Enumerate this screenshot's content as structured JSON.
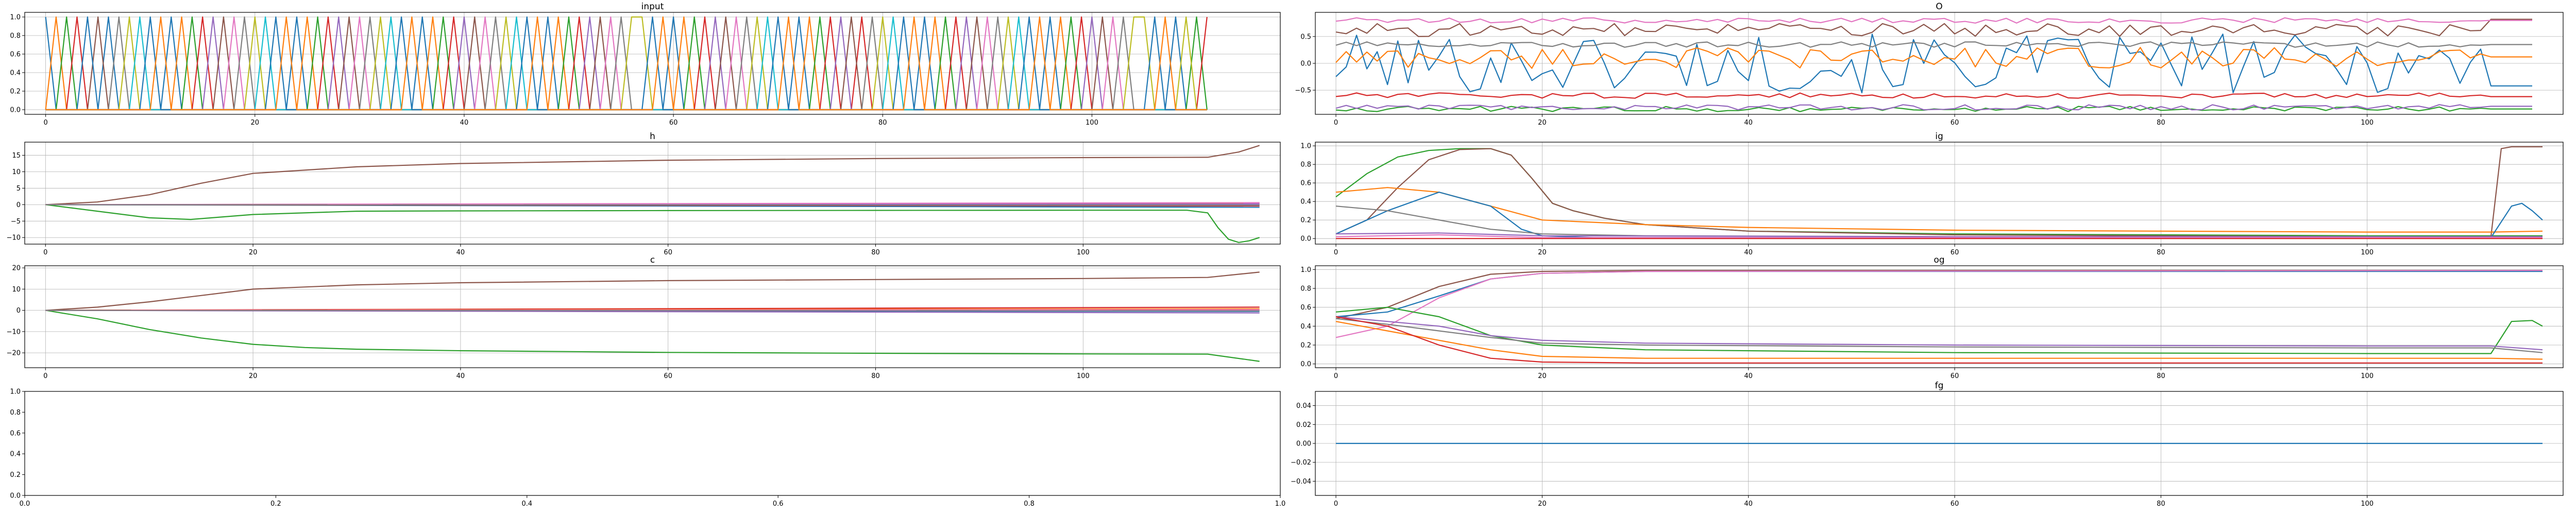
{
  "colors": {
    "C0": "#1f77b4",
    "C1": "#ff7f0e",
    "C2": "#2ca02c",
    "C3": "#d62728",
    "C4": "#9467bd",
    "C5": "#8c564b",
    "C6": "#e377c2",
    "C7": "#7f7f7f",
    "C8": "#bcbd22",
    "C9": "#17becf",
    "grid": "#b0b0b0"
  },
  "chart_data": [
    {
      "id": "input",
      "type": "line",
      "title": "input",
      "generator": "onehot_sequence",
      "n": 112,
      "period": 12,
      "xlim": [
        -2,
        118
      ],
      "ylim": [
        -0.05,
        1.05
      ],
      "xticks": [
        0,
        20,
        40,
        60,
        80,
        100
      ],
      "xtick_labels": [
        "0",
        "20",
        "40",
        "60",
        "80",
        "100"
      ],
      "yticks": [
        0,
        0.2,
        0.4,
        0.6,
        0.8,
        1.0
      ],
      "ytick_labels": [
        "0.0",
        "0.2",
        "0.4",
        "0.6",
        "0.8",
        "1.0"
      ],
      "grid": true
    },
    {
      "id": "o",
      "type": "line",
      "title": "O",
      "generator": "noisy",
      "n": 117,
      "xlim": [
        -2,
        119
      ],
      "ylim": [
        -0.95,
        0.95
      ],
      "xticks": [
        0,
        20,
        40,
        60,
        80,
        100
      ],
      "xtick_labels": [
        "0",
        "20",
        "40",
        "60",
        "80",
        "100"
      ],
      "yticks": [
        -0.5,
        0,
        0.5
      ],
      "ytick_labels": [
        "−0.5",
        "0.0",
        "0.5"
      ],
      "grid": true,
      "series": [
        {
          "color": "#1f77b4",
          "base": 0.0,
          "amp": 0.55,
          "end": -0.42,
          "end_from": 112
        },
        {
          "color": "#ff7f0e",
          "base": 0.1,
          "amp": 0.2,
          "end": 0.12,
          "end_from": 112
        },
        {
          "color": "#2ca02c",
          "base": -0.85,
          "amp": 0.05,
          "end": -0.85,
          "end_from": 112
        },
        {
          "color": "#d62728",
          "base": -0.6,
          "amp": 0.05,
          "end": -0.62,
          "end_from": 112
        },
        {
          "color": "#9467bd",
          "base": -0.82,
          "amp": 0.05,
          "end": -0.8,
          "end_from": 112
        },
        {
          "color": "#8c564b",
          "base": 0.62,
          "amp": 0.12,
          "end": 0.82,
          "end_from": 112
        },
        {
          "color": "#e377c2",
          "base": 0.8,
          "amp": 0.05,
          "end": 0.8,
          "end_from": 112
        },
        {
          "color": "#7f7f7f",
          "base": 0.35,
          "amp": 0.05,
          "end": 0.35,
          "end_from": 112
        }
      ]
    },
    {
      "id": "h",
      "type": "line",
      "title": "h",
      "xlim": [
        -2,
        119
      ],
      "ylim": [
        -12,
        19
      ],
      "xticks": [
        0,
        20,
        40,
        60,
        80,
        100
      ],
      "xtick_labels": [
        "0",
        "20",
        "40",
        "60",
        "80",
        "100"
      ],
      "yticks": [
        -10,
        -5,
        0,
        5,
        10,
        15
      ],
      "ytick_labels": [
        "−10",
        "−5",
        "0",
        "5",
        "10",
        "15"
      ],
      "grid": true,
      "series": [
        {
          "color": "#8c564b",
          "x": [
            0,
            5,
            10,
            15,
            20,
            30,
            40,
            60,
            80,
            100,
            112,
            115,
            117
          ],
          "y": [
            0,
            0.8,
            3,
            6.5,
            9.5,
            11.5,
            12.5,
            13.5,
            14,
            14.3,
            14.4,
            16,
            18
          ]
        },
        {
          "color": "#2ca02c",
          "x": [
            0,
            5,
            10,
            14,
            20,
            30,
            40,
            60,
            80,
            100,
            110,
            112,
            113,
            114,
            115,
            116,
            117
          ],
          "y": [
            0,
            -2,
            -4,
            -4.5,
            -3,
            -2,
            -1.9,
            -1.8,
            -1.75,
            -1.7,
            -1.7,
            -2.5,
            -7,
            -10.5,
            -11.5,
            -11,
            -10
          ]
        },
        {
          "color": "#1f77b4",
          "x": [
            0,
            117
          ],
          "y": [
            0,
            -0.8
          ]
        },
        {
          "color": "#ff7f0e",
          "x": [
            0,
            117
          ],
          "y": [
            0,
            0.4
          ]
        },
        {
          "color": "#d62728",
          "x": [
            0,
            117
          ],
          "y": [
            0,
            -0.4
          ]
        },
        {
          "color": "#9467bd",
          "x": [
            0,
            117
          ],
          "y": [
            0,
            0.2
          ]
        },
        {
          "color": "#e377c2",
          "x": [
            0,
            117
          ],
          "y": [
            0,
            0.6
          ]
        },
        {
          "color": "#7f7f7f",
          "x": [
            0,
            117
          ],
          "y": [
            0,
            -0.2
          ]
        }
      ]
    },
    {
      "id": "ig",
      "type": "line",
      "title": "ig",
      "xlim": [
        -2,
        119
      ],
      "ylim": [
        -0.06,
        1.04
      ],
      "xticks": [
        0,
        20,
        40,
        60,
        80,
        100
      ],
      "xtick_labels": [
        "0",
        "20",
        "40",
        "60",
        "80",
        "100"
      ],
      "yticks": [
        0,
        0.2,
        0.4,
        0.6,
        0.8,
        1.0
      ],
      "ytick_labels": [
        "0.0",
        "0.2",
        "0.4",
        "0.6",
        "0.8",
        "1.0"
      ],
      "grid": true,
      "series": [
        {
          "color": "#2ca02c",
          "x": [
            0,
            3,
            6,
            9,
            12,
            15,
            17,
            19,
            21,
            23,
            26,
            30,
            40,
            60,
            80,
            100,
            112,
            117
          ],
          "y": [
            0.45,
            0.7,
            0.88,
            0.95,
            0.97,
            0.97,
            0.9,
            0.65,
            0.38,
            0.3,
            0.22,
            0.15,
            0.08,
            0.05,
            0.04,
            0.03,
            0.03,
            0.03
          ]
        },
        {
          "color": "#8c564b",
          "x": [
            0,
            3,
            6,
            9,
            12,
            15,
            17,
            19,
            21,
            23,
            26,
            30,
            40,
            60,
            80,
            100,
            112,
            113,
            114,
            117
          ],
          "y": [
            0.05,
            0.2,
            0.55,
            0.85,
            0.96,
            0.97,
            0.9,
            0.65,
            0.38,
            0.3,
            0.22,
            0.15,
            0.08,
            0.04,
            0.03,
            0.02,
            0.02,
            0.97,
            0.99,
            0.99
          ]
        },
        {
          "color": "#ff7f0e",
          "x": [
            0,
            5,
            10,
            15,
            20,
            30,
            40,
            60,
            80,
            100,
            112,
            117
          ],
          "y": [
            0.5,
            0.55,
            0.5,
            0.35,
            0.2,
            0.15,
            0.12,
            0.09,
            0.08,
            0.07,
            0.07,
            0.08
          ]
        },
        {
          "color": "#1f77b4",
          "x": [
            0,
            5,
            10,
            15,
            18,
            20,
            25,
            30,
            60,
            100,
            112,
            114,
            115,
            116,
            117
          ],
          "y": [
            0.05,
            0.3,
            0.5,
            0.35,
            0.1,
            0.03,
            0.01,
            0.01,
            0.01,
            0.01,
            0.01,
            0.35,
            0.38,
            0.3,
            0.2
          ]
        },
        {
          "color": "#7f7f7f",
          "x": [
            0,
            5,
            10,
            15,
            20,
            30,
            60,
            117
          ],
          "y": [
            0.35,
            0.3,
            0.2,
            0.1,
            0.05,
            0.03,
            0.02,
            0.02
          ]
        },
        {
          "color": "#9467bd",
          "x": [
            0,
            10,
            20,
            60,
            117
          ],
          "y": [
            0.05,
            0.06,
            0.03,
            0.02,
            0.02
          ]
        },
        {
          "color": "#e377c2",
          "x": [
            0,
            10,
            20,
            117
          ],
          "y": [
            0.02,
            0.04,
            0.01,
            0.01
          ]
        },
        {
          "color": "#d62728",
          "x": [
            0,
            117
          ],
          "y": [
            0.0,
            0.0
          ]
        }
      ]
    },
    {
      "id": "c",
      "type": "line",
      "title": "c",
      "xlim": [
        -2,
        119
      ],
      "ylim": [
        -27,
        21
      ],
      "xticks": [
        0,
        20,
        40,
        60,
        80,
        100
      ],
      "xtick_labels": [
        "0",
        "20",
        "40",
        "60",
        "80",
        "100"
      ],
      "yticks": [
        -20,
        -10,
        0,
        10,
        20
      ],
      "ytick_labels": [
        "−20",
        "−10",
        "0",
        "10",
        "20"
      ],
      "grid": true,
      "series": [
        {
          "color": "#8c564b",
          "x": [
            0,
            5,
            10,
            15,
            20,
            30,
            40,
            60,
            80,
            100,
            112,
            117
          ],
          "y": [
            0,
            1.5,
            4,
            7,
            10,
            12,
            13,
            14,
            14.5,
            15,
            15.5,
            18
          ]
        },
        {
          "color": "#2ca02c",
          "x": [
            0,
            5,
            10,
            15,
            20,
            25,
            30,
            40,
            60,
            80,
            100,
            112,
            117
          ],
          "y": [
            0,
            -4,
            -9,
            -13,
            -16,
            -17.5,
            -18.3,
            -19,
            -19.8,
            -20.2,
            -20.5,
            -20.6,
            -24
          ]
        },
        {
          "color": "#d62728",
          "x": [
            0,
            117
          ],
          "y": [
            0,
            1.5
          ]
        },
        {
          "color": "#ff7f0e",
          "x": [
            0,
            117
          ],
          "y": [
            0,
            0.7
          ]
        },
        {
          "color": "#1f77b4",
          "x": [
            0,
            117
          ],
          "y": [
            0,
            -0.5
          ]
        },
        {
          "color": "#9467bd",
          "x": [
            0,
            117
          ],
          "y": [
            0,
            -1.2
          ]
        },
        {
          "color": "#e377c2",
          "x": [
            0,
            117
          ],
          "y": [
            0,
            0.3
          ]
        },
        {
          "color": "#7f7f7f",
          "x": [
            0,
            117
          ],
          "y": [
            0,
            -0.2
          ]
        }
      ]
    },
    {
      "id": "og",
      "type": "line",
      "title": "og",
      "xlim": [
        -2,
        119
      ],
      "ylim": [
        -0.04,
        1.04
      ],
      "xticks": [
        0,
        20,
        40,
        60,
        80,
        100
      ],
      "xtick_labels": [
        "0",
        "20",
        "40",
        "60",
        "80",
        "100"
      ],
      "yticks": [
        0,
        0.2,
        0.4,
        0.6,
        0.8,
        1.0
      ],
      "ytick_labels": [
        "0.0",
        "0.2",
        "0.4",
        "0.6",
        "0.8",
        "1.0"
      ],
      "grid": true,
      "series": [
        {
          "color": "#8c564b",
          "x": [
            0,
            5,
            10,
            15,
            20,
            30,
            117
          ],
          "y": [
            0.48,
            0.6,
            0.82,
            0.95,
            0.98,
            0.99,
            0.99
          ]
        },
        {
          "color": "#1f77b4",
          "x": [
            0,
            5,
            10,
            15,
            20,
            30,
            117
          ],
          "y": [
            0.5,
            0.55,
            0.72,
            0.9,
            0.96,
            0.98,
            0.98
          ]
        },
        {
          "color": "#e377c2",
          "x": [
            0,
            5,
            10,
            15,
            20,
            30,
            117
          ],
          "y": [
            0.28,
            0.4,
            0.7,
            0.9,
            0.96,
            0.98,
            0.99
          ]
        },
        {
          "color": "#2ca02c",
          "x": [
            0,
            5,
            10,
            15,
            20,
            30,
            60,
            100,
            112,
            114,
            116,
            117
          ],
          "y": [
            0.55,
            0.6,
            0.5,
            0.3,
            0.2,
            0.15,
            0.12,
            0.11,
            0.11,
            0.45,
            0.46,
            0.4
          ]
        },
        {
          "color": "#9467bd",
          "x": [
            0,
            5,
            10,
            15,
            20,
            30,
            60,
            100,
            112,
            117
          ],
          "y": [
            0.5,
            0.45,
            0.4,
            0.3,
            0.25,
            0.22,
            0.2,
            0.19,
            0.19,
            0.15
          ]
        },
        {
          "color": "#7f7f7f",
          "x": [
            0,
            5,
            10,
            15,
            20,
            30,
            60,
            100,
            112,
            117
          ],
          "y": [
            0.48,
            0.42,
            0.35,
            0.28,
            0.22,
            0.2,
            0.18,
            0.17,
            0.17,
            0.12
          ]
        },
        {
          "color": "#ff7f0e",
          "x": [
            0,
            5,
            10,
            15,
            20,
            30,
            60,
            112,
            117
          ],
          "y": [
            0.45,
            0.35,
            0.25,
            0.15,
            0.08,
            0.06,
            0.06,
            0.06,
            0.05
          ]
        },
        {
          "color": "#d62728",
          "x": [
            0,
            5,
            10,
            15,
            20,
            30,
            117
          ],
          "y": [
            0.5,
            0.4,
            0.2,
            0.06,
            0.02,
            0.01,
            0.01
          ]
        }
      ]
    },
    {
      "id": "empty",
      "type": "line",
      "title": "",
      "xlim": [
        0,
        1
      ],
      "ylim": [
        0,
        1
      ],
      "xticks": [
        0,
        0.2,
        0.4,
        0.6,
        0.8,
        1.0
      ],
      "xtick_labels": [
        "0.0",
        "0.2",
        "0.4",
        "0.6",
        "0.8",
        "1.0"
      ],
      "yticks": [
        0,
        0.2,
        0.4,
        0.6,
        0.8,
        1.0
      ],
      "ytick_labels": [
        "0.0",
        "0.2",
        "0.4",
        "0.6",
        "0.8",
        "1.0"
      ],
      "grid": false,
      "series": []
    },
    {
      "id": "fg",
      "type": "line",
      "title": "fg",
      "xlim": [
        -2,
        119
      ],
      "ylim": [
        -0.055,
        0.055
      ],
      "xticks": [
        0,
        20,
        40,
        60,
        80,
        100
      ],
      "xtick_labels": [
        "0",
        "20",
        "40",
        "60",
        "80",
        "100"
      ],
      "yticks": [
        -0.04,
        -0.02,
        0,
        0.02,
        0.04
      ],
      "ytick_labels": [
        "−0.04",
        "−0.02",
        "0.00",
        "0.02",
        "0.04"
      ],
      "grid": true,
      "series": [
        {
          "color": "#1f77b4",
          "x": [
            0,
            117
          ],
          "y": [
            0,
            0
          ]
        }
      ]
    }
  ]
}
